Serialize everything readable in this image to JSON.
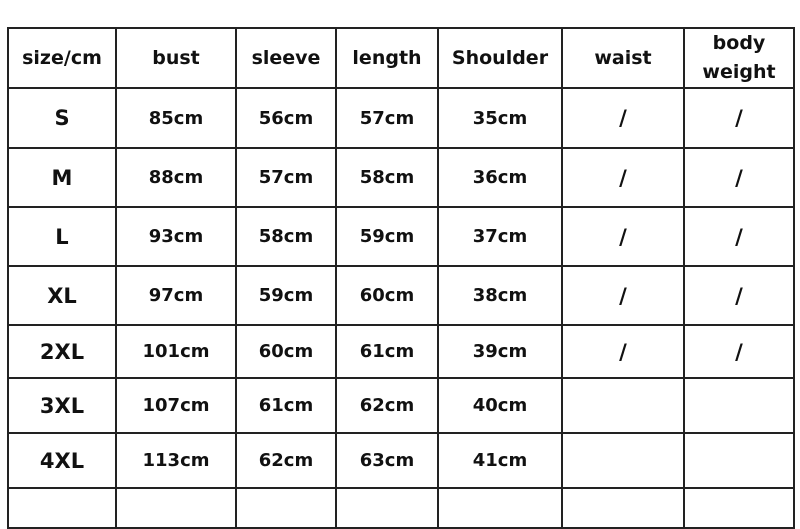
{
  "table": {
    "headers": [
      "size/cm",
      "bust",
      "sleeve",
      "length",
      "Shoulder",
      "waist",
      "body weight"
    ],
    "rows": [
      [
        "S",
        "85cm",
        "56cm",
        "57cm",
        "35cm",
        "/",
        "/"
      ],
      [
        "M",
        "88cm",
        "57cm",
        "58cm",
        "36cm",
        "/",
        "/"
      ],
      [
        "L",
        "93cm",
        "58cm",
        "59cm",
        "37cm",
        "/",
        "/"
      ],
      [
        "XL",
        "97cm",
        "59cm",
        "60cm",
        "38cm",
        "/",
        "/"
      ],
      [
        "2XL",
        "101cm",
        "60cm",
        "61cm",
        "39cm",
        "/",
        "/"
      ],
      [
        "3XL",
        "107cm",
        "61cm",
        "62cm",
        "40cm",
        "",
        ""
      ],
      [
        "4XL",
        "113cm",
        "62cm",
        "63cm",
        "41cm",
        "",
        ""
      ]
    ]
  }
}
